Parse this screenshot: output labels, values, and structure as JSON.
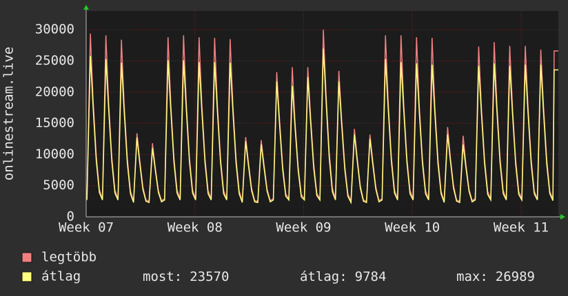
{
  "chart_data": {
    "type": "line",
    "y_label": "onlinestream.live",
    "xlim": [
      0,
      30.4
    ],
    "xticks": [
      {
        "value": 0,
        "label": "Week 07"
      },
      {
        "value": 7,
        "label": "Week 08"
      },
      {
        "value": 14,
        "label": "Week 09"
      },
      {
        "value": 21,
        "label": "Week 10"
      },
      {
        "value": 28,
        "label": "Week 11"
      }
    ],
    "ylim": [
      0,
      33000
    ],
    "yticks": [
      0,
      5000,
      10000,
      15000,
      20000,
      25000,
      30000
    ],
    "grid": true,
    "x": [
      0.05,
      0.27,
      0.45,
      0.65,
      0.85,
      1.05,
      1.27,
      1.45,
      1.65,
      1.85,
      2.05,
      2.27,
      2.45,
      2.65,
      2.85,
      3.05,
      3.27,
      3.45,
      3.65,
      3.85,
      4.05,
      4.27,
      4.45,
      4.65,
      4.85,
      5.05,
      5.27,
      5.45,
      5.65,
      5.85,
      6.05,
      6.27,
      6.45,
      6.65,
      6.85,
      7.05,
      7.27,
      7.45,
      7.65,
      7.85,
      8.05,
      8.27,
      8.45,
      8.65,
      8.85,
      9.05,
      9.27,
      9.45,
      9.65,
      9.85,
      10.05,
      10.27,
      10.45,
      10.65,
      10.85,
      11.05,
      11.27,
      11.45,
      11.65,
      11.85,
      12.05,
      12.27,
      12.45,
      12.65,
      12.85,
      13.05,
      13.27,
      13.45,
      13.65,
      13.85,
      14.05,
      14.27,
      14.45,
      14.65,
      14.85,
      15.05,
      15.27,
      15.45,
      15.65,
      15.85,
      16.05,
      16.27,
      16.45,
      16.65,
      16.85,
      17.05,
      17.27,
      17.45,
      17.65,
      17.85,
      18.05,
      18.27,
      18.45,
      18.65,
      18.85,
      19.05,
      19.27,
      19.45,
      19.65,
      19.85,
      20.05,
      20.27,
      20.45,
      20.65,
      20.85,
      21.05,
      21.27,
      21.45,
      21.65,
      21.85,
      22.05,
      22.27,
      22.45,
      22.65,
      22.85,
      23.05,
      23.27,
      23.45,
      23.65,
      23.85,
      24.05,
      24.27,
      24.45,
      24.65,
      24.85,
      25.05,
      25.27,
      25.45,
      25.65,
      25.85,
      26.05,
      26.27,
      26.45,
      26.65,
      26.85,
      27.05,
      27.27,
      27.45,
      27.65,
      27.85,
      28.05,
      28.27,
      28.45,
      28.65,
      28.85,
      29.05,
      29.27,
      29.45,
      29.65,
      29.85,
      30.05,
      30.13,
      30.4
    ],
    "series": [
      {
        "name": "legtöbb",
        "color": "#f08080",
        "values": [
          2900,
          29400,
          18600,
          9800,
          4400,
          2900,
          29100,
          18200,
          9600,
          4300,
          2900,
          28400,
          17800,
          9400,
          4200,
          2500,
          13400,
          9100,
          4800,
          2700,
          2500,
          11800,
          7900,
          4200,
          2600,
          2900,
          28800,
          18100,
          9500,
          4300,
          2900,
          29100,
          18100,
          9500,
          4300,
          2900,
          28800,
          17900,
          9400,
          4200,
          2900,
          28700,
          17900,
          9400,
          4200,
          2900,
          28500,
          17800,
          9400,
          4200,
          2500,
          12800,
          8700,
          4600,
          2600,
          2500,
          12300,
          8400,
          4400,
          2600,
          2900,
          23200,
          15600,
          8200,
          3700,
          2900,
          24000,
          15100,
          8000,
          3600,
          2900,
          24000,
          16100,
          8500,
          3800,
          2900,
          30000,
          19400,
          10300,
          4600,
          2900,
          23400,
          15600,
          8200,
          3700,
          2500,
          14100,
          9500,
          5000,
          2700,
          2500,
          13200,
          9000,
          4800,
          2600,
          2900,
          29100,
          18200,
          9600,
          4300,
          2900,
          29100,
          17900,
          9400,
          4200,
          2900,
          28800,
          17700,
          9300,
          4200,
          2900,
          28700,
          17600,
          9300,
          4100,
          2500,
          14400,
          9500,
          5000,
          2700,
          2500,
          13000,
          8400,
          4400,
          2600,
          2900,
          27300,
          17400,
          9200,
          4100,
          2900,
          28000,
          17700,
          9300,
          4200,
          2900,
          27400,
          17400,
          9200,
          4100,
          2900,
          27400,
          17600,
          9300,
          4100,
          2900,
          26800,
          17600,
          9300,
          4100,
          2800,
          26600,
          26600
        ]
      },
      {
        "name": "átlag",
        "color": "#ffff80",
        "values": [
          2700,
          25800,
          17500,
          9000,
          3900,
          2700,
          25300,
          17200,
          8900,
          3800,
          2700,
          24700,
          16800,
          8600,
          3700,
          2300,
          12700,
          8600,
          4400,
          2500,
          2300,
          11000,
          7500,
          3900,
          2400,
          2700,
          25100,
          17100,
          8800,
          3800,
          2700,
          25100,
          17100,
          8800,
          3800,
          2700,
          24800,
          16900,
          8700,
          3700,
          2700,
          24800,
          16900,
          8700,
          3700,
          2700,
          24700,
          16800,
          8600,
          3700,
          2300,
          12100,
          8200,
          4200,
          2400,
          2300,
          11600,
          7900,
          4100,
          2400,
          2700,
          21700,
          14800,
          7600,
          3300,
          2700,
          21000,
          14300,
          7400,
          3200,
          2700,
          22400,
          15200,
          7800,
          3400,
          2700,
          26989,
          18400,
          9400,
          4000,
          2700,
          21700,
          14800,
          7600,
          3300,
          2300,
          13200,
          9000,
          4600,
          2500,
          2300,
          12500,
          8500,
          4400,
          2400,
          2700,
          25300,
          17200,
          8900,
          3800,
          2700,
          24800,
          16900,
          8700,
          3700,
          2700,
          24600,
          16700,
          8600,
          3700,
          2700,
          24400,
          16600,
          8500,
          3700,
          2300,
          13200,
          9000,
          4600,
          2500,
          2300,
          11600,
          7900,
          4100,
          2400,
          2700,
          24200,
          16500,
          8500,
          3600,
          2700,
          24600,
          16700,
          8600,
          3700,
          2700,
          24200,
          16500,
          8500,
          3600,
          2700,
          24400,
          16600,
          8500,
          3700,
          2700,
          24400,
          16600,
          8500,
          3700,
          2600,
          23570,
          23570
        ]
      }
    ],
    "stats": [
      {
        "label": "most:",
        "value": 23570
      },
      {
        "label": "átlag:",
        "value": 9784
      },
      {
        "label": "max:",
        "value": 26989
      }
    ]
  }
}
